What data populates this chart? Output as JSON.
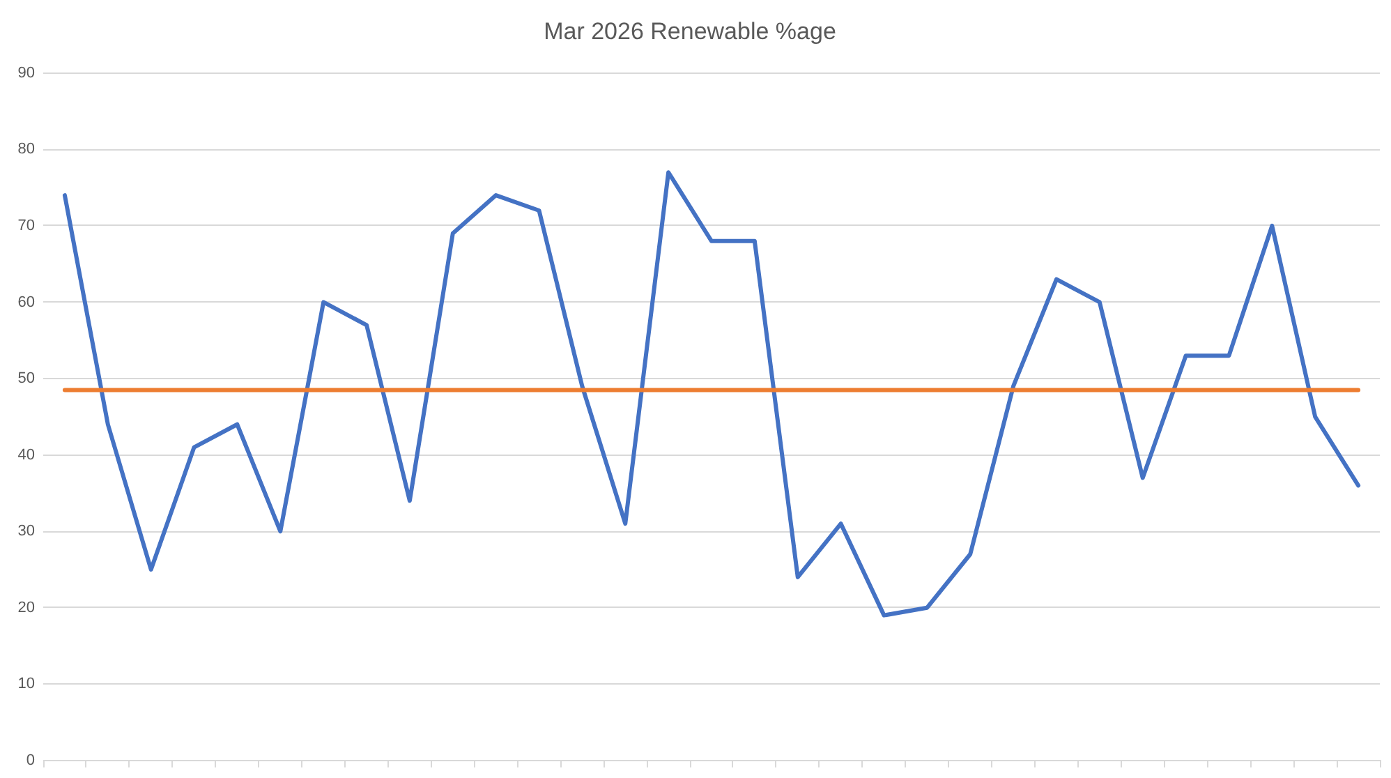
{
  "chart_data": {
    "type": "line",
    "title": "Mar 2026 Renewable %age",
    "categories": [
      null,
      null,
      null,
      null,
      null,
      null,
      null,
      null,
      null,
      null,
      null,
      null,
      null,
      null,
      null,
      null,
      null,
      null,
      null,
      null,
      null,
      null,
      null,
      null,
      null,
      null,
      null,
      null,
      null,
      null,
      null
    ],
    "series": [
      {
        "color": "#4472c4",
        "values": [
          74,
          44,
          25,
          41,
          44,
          30,
          60,
          57,
          34,
          69,
          74,
          72,
          49,
          31,
          77,
          68,
          68,
          24,
          31,
          19,
          20,
          27,
          49,
          63,
          60,
          37,
          53,
          53,
          70,
          45,
          36
        ]
      },
      {
        "color": "#ed7d31",
        "values": [
          48.5,
          48.5,
          48.5,
          48.5,
          48.5,
          48.5,
          48.5,
          48.5,
          48.5,
          48.5,
          48.5,
          48.5,
          48.5,
          48.5,
          48.5,
          48.5,
          48.5,
          48.5,
          48.5,
          48.5,
          48.5,
          48.5,
          48.5,
          48.5,
          48.5,
          48.5,
          48.5,
          48.5,
          48.5,
          48.5,
          48.5
        ]
      }
    ],
    "ylim": [
      0,
      90
    ],
    "yticks": [
      0,
      10,
      20,
      30,
      40,
      50,
      60,
      70,
      80,
      90
    ],
    "grid": "y",
    "marker": "none",
    "tick_labels": "y"
  }
}
